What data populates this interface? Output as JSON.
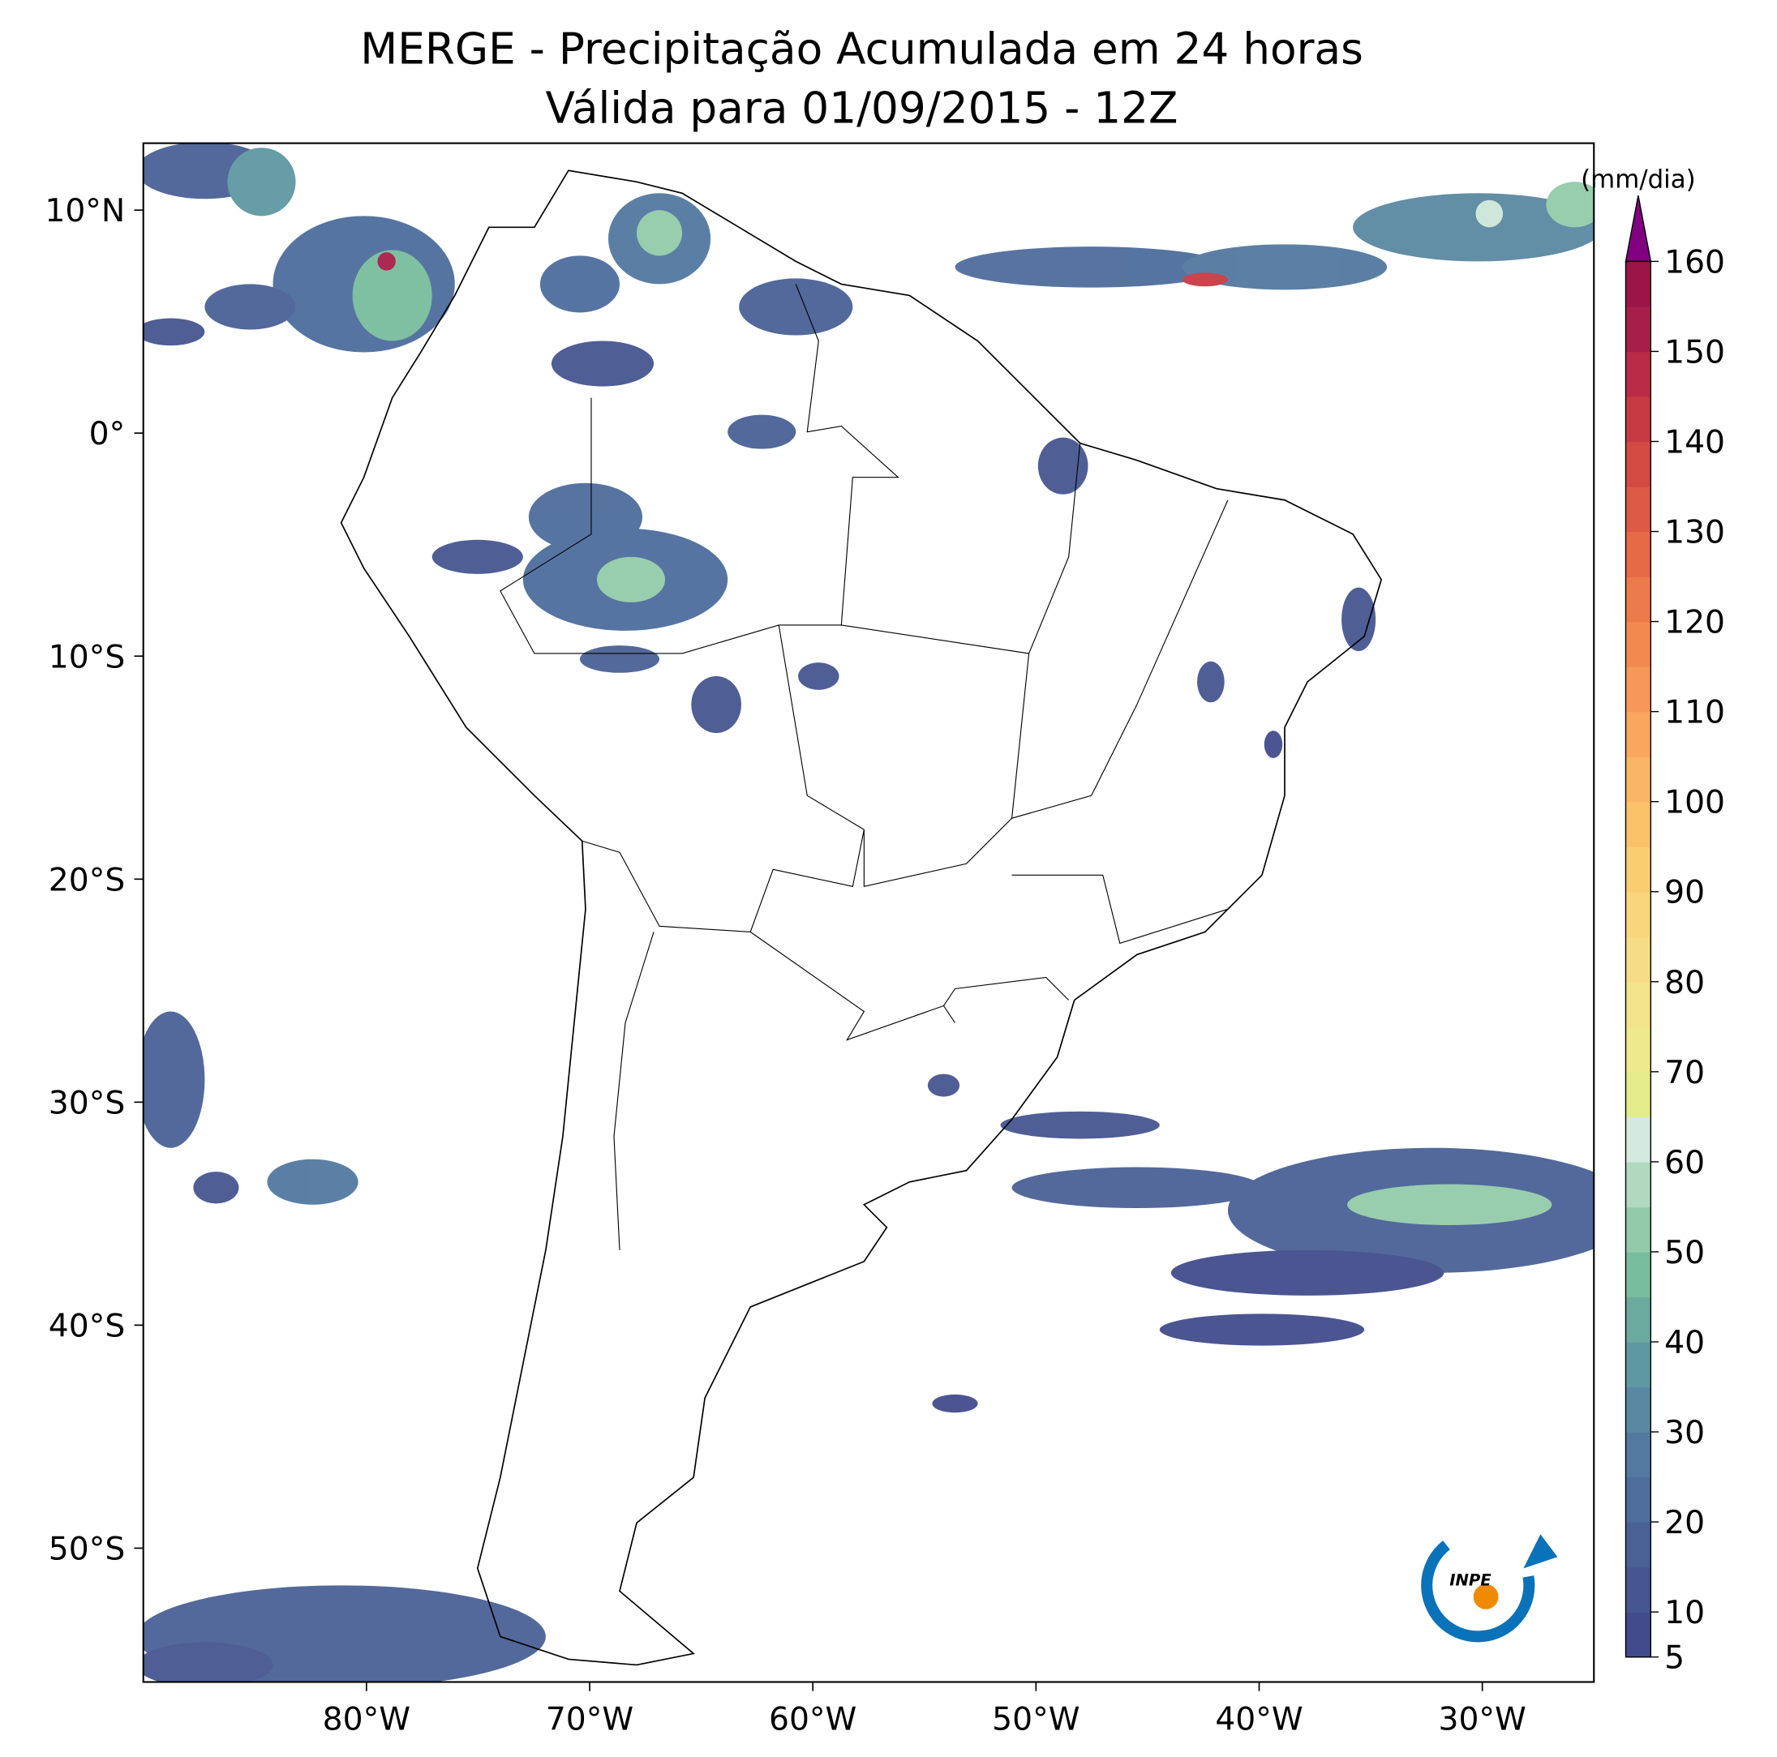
{
  "chart_data": {
    "type": "map",
    "title": "MERGE - Precipitação Acumulada em 24 horas",
    "subtitle": "Válida para 01/09/2015 - 12Z",
    "xlim": [
      -90,
      -25
    ],
    "ylim": [
      -56,
      13
    ],
    "xticks": [
      {
        "value": -80,
        "label": "80°W"
      },
      {
        "value": -70,
        "label": "70°W"
      },
      {
        "value": -60,
        "label": "60°W"
      },
      {
        "value": -50,
        "label": "50°W"
      },
      {
        "value": -40,
        "label": "40°W"
      },
      {
        "value": -30,
        "label": "30°W"
      }
    ],
    "yticks": [
      {
        "value": 10,
        "label": "10°N"
      },
      {
        "value": 0,
        "label": "0°"
      },
      {
        "value": -10,
        "label": "10°S"
      },
      {
        "value": -20,
        "label": "20°S"
      },
      {
        "value": -30,
        "label": "30°S"
      },
      {
        "value": -40,
        "label": "40°S"
      },
      {
        "value": -50,
        "label": "50°S"
      }
    ],
    "colorbar": {
      "label": "(mm/dia)",
      "lim": [
        5,
        160
      ],
      "ticks": [
        5,
        10,
        20,
        30,
        40,
        50,
        60,
        70,
        80,
        90,
        100,
        110,
        120,
        130,
        140,
        150,
        160
      ],
      "levels": [
        5,
        10,
        15,
        20,
        25,
        30,
        35,
        40,
        45,
        50,
        55,
        60,
        65,
        70,
        75,
        80,
        85,
        90,
        95,
        100,
        105,
        110,
        115,
        120,
        125,
        130,
        135,
        140,
        145,
        150,
        155,
        160
      ],
      "colors": [
        "#424c8c",
        "#465690",
        "#4a6196",
        "#4e6d9c",
        "#5379a0",
        "#5a88a2",
        "#5e98a3",
        "#6aaa9f",
        "#78bd9d",
        "#93cbaa",
        "#b0d9bf",
        "#d4e9e0",
        "#e4eb8a",
        "#eee98a",
        "#f3e38a",
        "#f6dc84",
        "#f9d57c",
        "#fbcd73",
        "#fbc26b",
        "#fbb566",
        "#f9a75e",
        "#f69858",
        "#f28a50",
        "#ed7a4b",
        "#e66a46",
        "#dd5a44",
        "#d34a43",
        "#c73a44",
        "#b92b46",
        "#a81e4a",
        "#9b1549"
      ],
      "extend_color": "#800080"
    }
  }
}
